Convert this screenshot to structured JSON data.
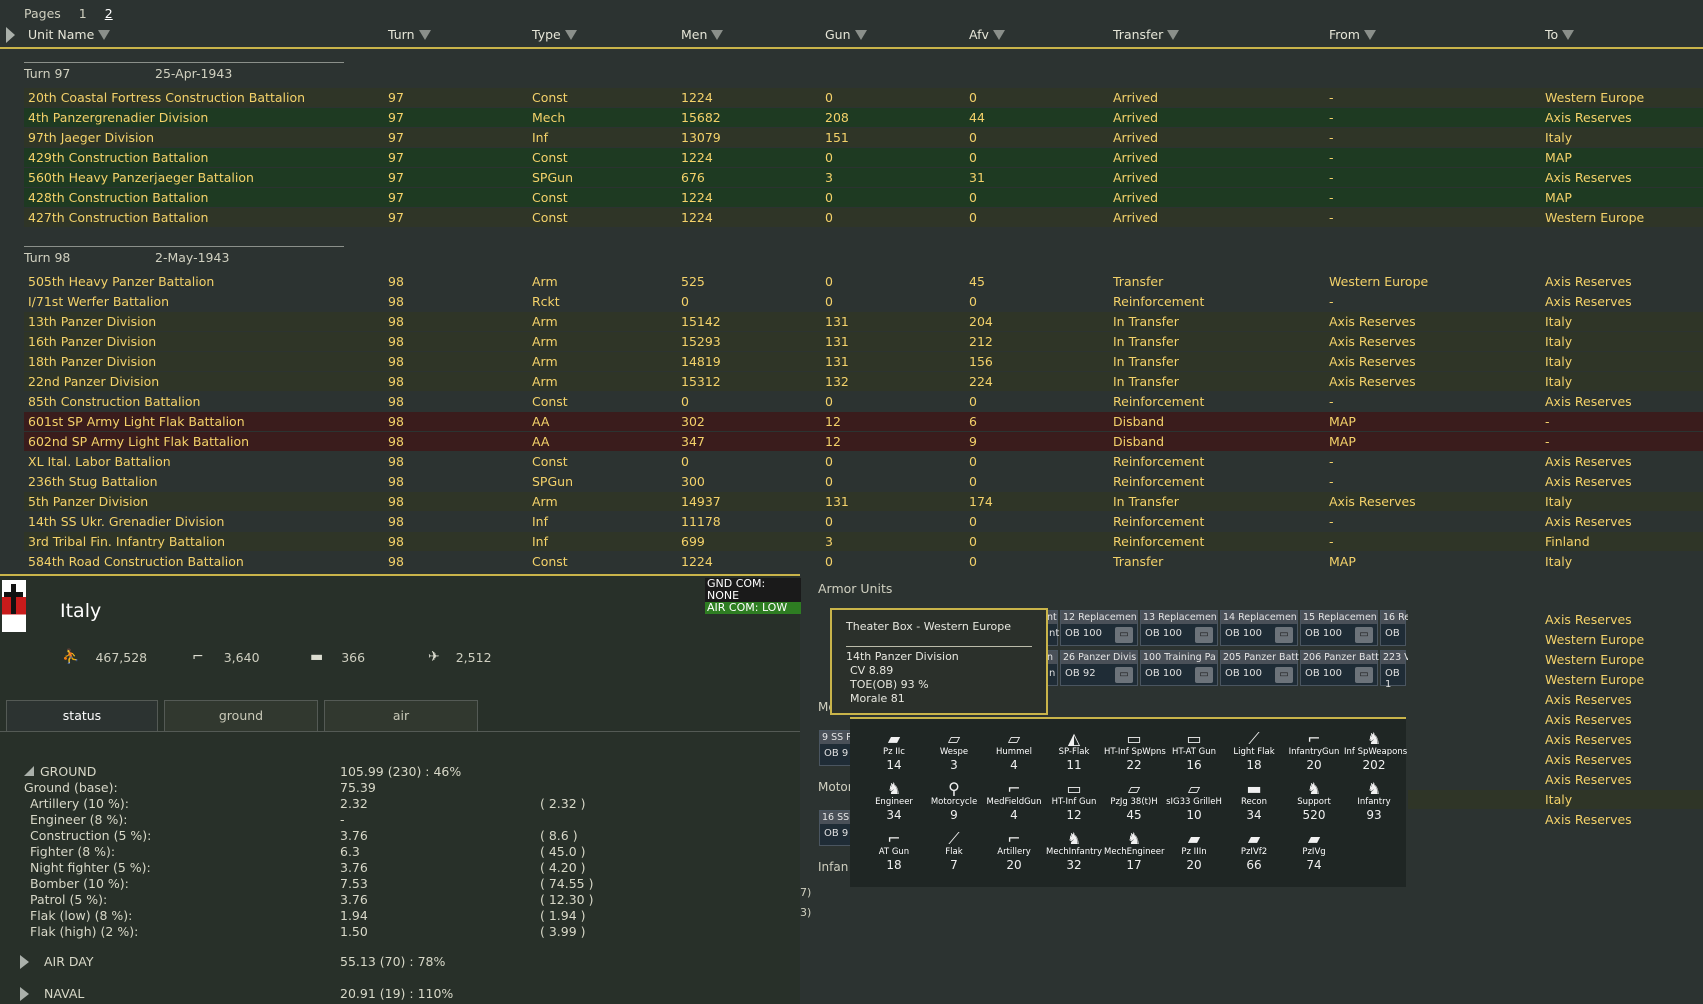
{
  "pages": {
    "label": "Pages",
    "items": [
      "1",
      "2"
    ],
    "current": "2"
  },
  "columns": [
    "Unit Name",
    "Turn",
    "Type",
    "Men",
    "Gun",
    "Afv",
    "Transfer",
    "From",
    "To"
  ],
  "groups": [
    {
      "turn_label": "Turn 97",
      "date": "25-Apr-1943",
      "rows": [
        {
          "name": "20th Coastal Fortress Construction Battalion",
          "turn": "97",
          "type": "Const",
          "men": "1224",
          "gun": "0",
          "afv": "0",
          "transfer": "Arrived",
          "from": "-",
          "to": "Western Europe",
          "tone": "gold"
        },
        {
          "name": "4th Panzergrenadier Division",
          "turn": "97",
          "type": "Mech",
          "men": "15682",
          "gun": "208",
          "afv": "44",
          "transfer": "Arrived",
          "from": "-",
          "to": "Axis Reserves",
          "tone": "green"
        },
        {
          "name": "97th Jaeger Division",
          "turn": "97",
          "type": "Inf",
          "men": "13079",
          "gun": "151",
          "afv": "0",
          "transfer": "Arrived",
          "from": "-",
          "to": "Italy",
          "tone": "gold"
        },
        {
          "name": "429th Construction Battalion",
          "turn": "97",
          "type": "Const",
          "men": "1224",
          "gun": "0",
          "afv": "0",
          "transfer": "Arrived",
          "from": "-",
          "to": "MAP",
          "tone": "green"
        },
        {
          "name": "560th Heavy Panzerjaeger Battalion",
          "turn": "97",
          "type": "SPGun",
          "men": "676",
          "gun": "3",
          "afv": "31",
          "transfer": "Arrived",
          "from": "-",
          "to": "Axis Reserves",
          "tone": "green"
        },
        {
          "name": "428th Construction Battalion",
          "turn": "97",
          "type": "Const",
          "men": "1224",
          "gun": "0",
          "afv": "0",
          "transfer": "Arrived",
          "from": "-",
          "to": "MAP",
          "tone": "green"
        },
        {
          "name": "427th Construction Battalion",
          "turn": "97",
          "type": "Const",
          "men": "1224",
          "gun": "0",
          "afv": "0",
          "transfer": "Arrived",
          "from": "-",
          "to": "Western Europe",
          "tone": "gold"
        }
      ]
    },
    {
      "turn_label": "Turn 98",
      "date": "2-May-1943",
      "rows": [
        {
          "name": "505th Heavy Panzer Battalion",
          "turn": "98",
          "type": "Arm",
          "men": "525",
          "gun": "0",
          "afv": "45",
          "transfer": "Transfer",
          "from": "Western Europe",
          "to": "Axis Reserves",
          "tone": "plain"
        },
        {
          "name": "I/71st Werfer Battalion",
          "turn": "98",
          "type": "Rckt",
          "men": "0",
          "gun": "0",
          "afv": "0",
          "transfer": "Reinforcement",
          "from": "-",
          "to": "Axis Reserves",
          "tone": "plain"
        },
        {
          "name": "13th Panzer Division",
          "turn": "98",
          "type": "Arm",
          "men": "15142",
          "gun": "131",
          "afv": "204",
          "transfer": "In Transfer",
          "from": "Axis Reserves",
          "to": "Italy",
          "tone": "gold"
        },
        {
          "name": "16th Panzer Division",
          "turn": "98",
          "type": "Arm",
          "men": "15293",
          "gun": "131",
          "afv": "212",
          "transfer": "In Transfer",
          "from": "Axis Reserves",
          "to": "Italy",
          "tone": "gold"
        },
        {
          "name": "18th Panzer Division",
          "turn": "98",
          "type": "Arm",
          "men": "14819",
          "gun": "131",
          "afv": "156",
          "transfer": "In Transfer",
          "from": "Axis Reserves",
          "to": "Italy",
          "tone": "gold"
        },
        {
          "name": "22nd Panzer Division",
          "turn": "98",
          "type": "Arm",
          "men": "15312",
          "gun": "132",
          "afv": "224",
          "transfer": "In Transfer",
          "from": "Axis Reserves",
          "to": "Italy",
          "tone": "gold"
        },
        {
          "name": "85th Construction Battalion",
          "turn": "98",
          "type": "Const",
          "men": "0",
          "gun": "0",
          "afv": "0",
          "transfer": "Reinforcement",
          "from": "-",
          "to": "Axis Reserves",
          "tone": "plain"
        },
        {
          "name": "601st SP Army Light Flak Battalion",
          "turn": "98",
          "type": "AA",
          "men": "302",
          "gun": "12",
          "afv": "6",
          "transfer": "Disband",
          "from": "MAP",
          "to": "-",
          "tone": "red"
        },
        {
          "name": "602nd SP Army Light Flak Battalion",
          "turn": "98",
          "type": "AA",
          "men": "347",
          "gun": "12",
          "afv": "9",
          "transfer": "Disband",
          "from": "MAP",
          "to": "-",
          "tone": "red"
        },
        {
          "name": "XL Ital. Labor Battalion",
          "turn": "98",
          "type": "Const",
          "men": "0",
          "gun": "0",
          "afv": "0",
          "transfer": "Reinforcement",
          "from": "-",
          "to": "Axis Reserves",
          "tone": "plain"
        },
        {
          "name": "236th Stug Battalion",
          "turn": "98",
          "type": "SPGun",
          "men": "300",
          "gun": "0",
          "afv": "0",
          "transfer": "Reinforcement",
          "from": "-",
          "to": "Axis Reserves",
          "tone": "plain"
        },
        {
          "name": "5th Panzer Division",
          "turn": "98",
          "type": "Arm",
          "men": "14937",
          "gun": "131",
          "afv": "174",
          "transfer": "In Transfer",
          "from": "Axis Reserves",
          "to": "Italy",
          "tone": "gold"
        },
        {
          "name": "14th SS Ukr. Grenadier Division",
          "turn": "98",
          "type": "Inf",
          "men": "11178",
          "gun": "0",
          "afv": "0",
          "transfer": "Reinforcement",
          "from": "-",
          "to": "Axis Reserves",
          "tone": "plain"
        },
        {
          "name": "3rd Tribal Fin. Infantry Battalion",
          "turn": "98",
          "type": "Inf",
          "men": "699",
          "gun": "3",
          "afv": "0",
          "transfer": "Reinforcement",
          "from": "-",
          "to": "Finland",
          "tone": "gold"
        },
        {
          "name": "584th Road Construction Battalion",
          "turn": "98",
          "type": "Const",
          "men": "1224",
          "gun": "0",
          "afv": "0",
          "transfer": "Transfer",
          "from": "MAP",
          "to": "Italy",
          "tone": "plain"
        }
      ]
    }
  ],
  "right_edge_to": [
    "Axis Reserves",
    "Western Europe",
    "Western Europe",
    "Western Europe",
    "Axis Reserves",
    "Axis Reserves",
    "Axis Reserves",
    "Axis Reserves",
    "Axis Reserves",
    "Italy",
    "Axis Reserves"
  ],
  "theater": {
    "name": "Italy",
    "men": "467,528",
    "guns": "3,640",
    "afv": "366",
    "aircraft": "2,512",
    "gnd_com": "GND COM: NONE",
    "air_com": "AIR COM: LOW",
    "tabs": [
      "status",
      "ground",
      "air"
    ],
    "active_tab": "status"
  },
  "status": {
    "ground": {
      "label": "GROUND",
      "value": "105.99  (230)  :  46%"
    },
    "base": {
      "label": "Ground (base):",
      "value": "75.39"
    },
    "rows": [
      {
        "label": "Artillery (10 %):",
        "value": "2.32",
        "paren": "( 2.32 )"
      },
      {
        "label": "Engineer (8 %):",
        "value": "-",
        "paren": ""
      },
      {
        "label": "Construction (5 %):",
        "value": "3.76",
        "paren": "( 8.6 )"
      },
      {
        "label": "Fighter (8 %):",
        "value": "6.3",
        "paren": "( 45.0 )"
      },
      {
        "label": "Night fighter (5 %):",
        "value": "3.76",
        "paren": "( 4.20 )"
      },
      {
        "label": "Bomber (10 %):",
        "value": "7.53",
        "paren": "( 74.55 )"
      },
      {
        "label": "Patrol (5 %):",
        "value": "3.76",
        "paren": "( 12.30 )"
      },
      {
        "label": "Flak (low) (8 %):",
        "value": "1.94",
        "paren": "( 1.94 )"
      },
      {
        "label": "Flak (high) (2 %):",
        "value": "1.50",
        "paren": "( 3.99 )"
      }
    ],
    "air_day": {
      "label": "AIR DAY",
      "value": "55.13  (70)  :  78%"
    },
    "naval": {
      "label": "NAVAL",
      "value": "20.91  (19)  :  110%"
    }
  },
  "armor": {
    "title": "Armor Units",
    "row1": [
      {
        "title": "12 Replacemen",
        "ob": "OB 100"
      },
      {
        "title": "13 Replacemen",
        "ob": "OB 100"
      },
      {
        "title": "14 Replacemen",
        "ob": "OB 100"
      },
      {
        "title": "15 Replacemen",
        "ob": "OB 100"
      }
    ],
    "row2": [
      {
        "title": "26 Panzer Divis",
        "ob": "OB 92"
      },
      {
        "title": "100 Training Pa",
        "ob": "OB 100"
      },
      {
        "title": "205 Panzer Batt",
        "ob": "OB 100"
      },
      {
        "title": "206 Panzer Batt",
        "ob": "OB 100"
      }
    ],
    "edge_r1_title": "16 Re",
    "edge_r1_ob": "OB",
    "edge_r2_title": "223 V",
    "edge_r2_ob": "OB 1",
    "left_r1": "nt",
    "left_r2": "n",
    "frag_me": "Me",
    "frag_motor": "Motor",
    "frag_infan": "Infan",
    "frag_ss": "9 SS Pz",
    "frag_ob": "OB 9",
    "frag_16ss": "16 SS",
    "frag_ob2": "OB 9",
    "frag_7": "7)",
    "frag_3": "3)"
  },
  "tooltip": {
    "title": "Theater Box - Western Europe",
    "unit": "14th Panzer Division",
    "cv": "CV 8.89",
    "toe": "TOE(OB) 93 %",
    "morale": "Morale 81"
  },
  "equipment": [
    {
      "name": "Pz IIc",
      "count": "14",
      "icon": "tank-icon"
    },
    {
      "name": "Wespe",
      "count": "3",
      "icon": "spg-icon"
    },
    {
      "name": "Hummel",
      "count": "4",
      "icon": "spg-icon"
    },
    {
      "name": "SP-Flak",
      "count": "11",
      "icon": "flak-vehicle-icon"
    },
    {
      "name": "HT-Inf SpWpns",
      "count": "22",
      "icon": "halftrack-icon"
    },
    {
      "name": "HT-AT Gun",
      "count": "16",
      "icon": "halftrack-icon"
    },
    {
      "name": "Light Flak",
      "count": "18",
      "icon": "flak-icon"
    },
    {
      "name": "InfantryGun",
      "count": "20",
      "icon": "gun-icon"
    },
    {
      "name": "Inf SpWeapons",
      "count": "202",
      "icon": "infantry-icon"
    },
    {
      "name": "Engineer",
      "count": "34",
      "icon": "infantry-icon"
    },
    {
      "name": "Motorcycle",
      "count": "9",
      "icon": "motorcycle-icon"
    },
    {
      "name": "MedFieldGun",
      "count": "4",
      "icon": "gun-icon"
    },
    {
      "name": "HT-Inf Gun",
      "count": "12",
      "icon": "halftrack-icon"
    },
    {
      "name": "PzJg 38(t)H",
      "count": "45",
      "icon": "spg-icon"
    },
    {
      "name": "sIG33 GrilleH",
      "count": "10",
      "icon": "spg-icon"
    },
    {
      "name": "Recon",
      "count": "34",
      "icon": "armored-car-icon"
    },
    {
      "name": "Support",
      "count": "520",
      "icon": "infantry-icon"
    },
    {
      "name": "Infantry",
      "count": "93",
      "icon": "infantry-icon"
    },
    {
      "name": "AT Gun",
      "count": "18",
      "icon": "gun-icon"
    },
    {
      "name": "Flak",
      "count": "7",
      "icon": "flak-icon"
    },
    {
      "name": "Artillery",
      "count": "20",
      "icon": "gun-icon"
    },
    {
      "name": "MechInfantry",
      "count": "32",
      "icon": "infantry-icon"
    },
    {
      "name": "MechEngineer",
      "count": "17",
      "icon": "infantry-icon"
    },
    {
      "name": "Pz IIIn",
      "count": "20",
      "icon": "tank-icon"
    },
    {
      "name": "PzIVf2",
      "count": "66",
      "icon": "tank-icon"
    },
    {
      "name": "PzIVg",
      "count": "74",
      "icon": "tank-icon"
    }
  ]
}
